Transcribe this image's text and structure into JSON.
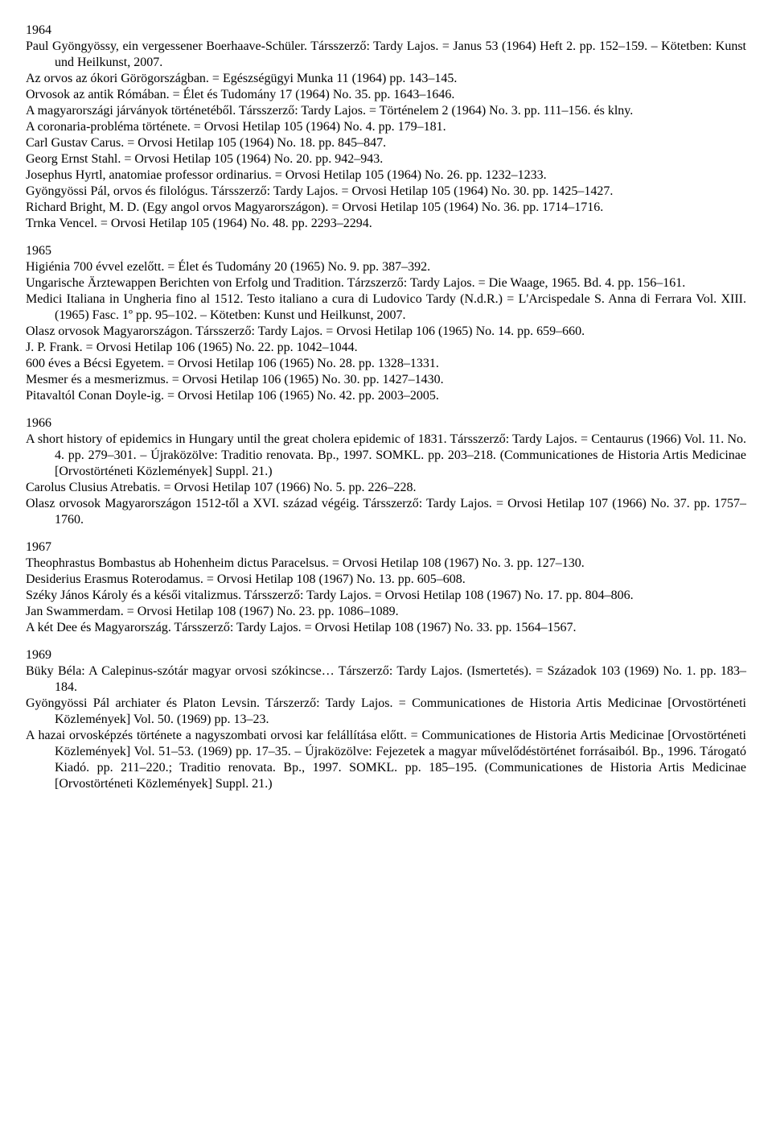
{
  "sections": [
    {
      "year": "1964",
      "entries": [
        "Paul Gyöngyössy, ein vergessener Boerhaave-Schüler. Társszerző: Tardy Lajos. = Janus 53 (1964) Heft 2. pp. 152–159. – Kötetben: Kunst und Heilkunst, 2007.",
        "Az orvos az ókori Görögországban. = Egészségügyi Munka 11 (1964) pp. 143–145.",
        "Orvosok az antik Rómában. = Élet és Tudomány 17 (1964) No. 35. pp. 1643–1646.",
        "A magyarországi járványok történetéből. Társszerző: Tardy Lajos. = Történelem 2 (1964) No. 3. pp. 111–156. és klny.",
        "A coronaria-probléma története. = Orvosi Hetilap 105 (1964) No. 4. pp. 179–181.",
        "Carl Gustav Carus. = Orvosi Hetilap 105 (1964) No. 18. pp. 845–847.",
        "Georg Ernst Stahl. = Orvosi Hetilap 105 (1964) No. 20. pp. 942–943.",
        "Josephus Hyrtl, anatomiae professor ordinarius. = Orvosi Hetilap 105 (1964) No. 26. pp. 1232–1233.",
        "Gyöngyössi Pál, orvos és filológus. Társszerző: Tardy Lajos. = Orvosi Hetilap 105 (1964) No. 30. pp. 1425–1427.",
        "Richard Bright, M. D. (Egy angol orvos Magyarországon). = Orvosi Hetilap 105 (1964) No. 36. pp. 1714–1716.",
        "Trnka Vencel. = Orvosi Hetilap 105 (1964) No. 48. pp. 2293–2294."
      ]
    },
    {
      "year": "1965",
      "entries": [
        "Higiénia 700 évvel ezelőtt. = Élet és Tudomány 20 (1965) No. 9. pp. 387–392.",
        "Ungarische Ärztewappen Berichten von Erfolg und Tradition. Tárzszerző: Tardy Lajos. = Die Waage, 1965. Bd. 4. pp. 156–161.",
        "Medici Italiana in Ungheria fino al 1512. Testo italiano a cura di Ludovico Tardy (N.d.R.) = L'Arcispedale S. Anna di Ferrara Vol. XIII. (1965) Fasc. 1º pp. 95–102. – Kötetben: Kunst und Heilkunst, 2007.",
        "Olasz orvosok Magyarországon. Társszerző: Tardy Lajos. = Orvosi Hetilap 106 (1965) No. 14. pp. 659–660.",
        "J. P. Frank. = Orvosi Hetilap 106 (1965) No. 22. pp. 1042–1044.",
        "600 éves a Bécsi Egyetem. = Orvosi Hetilap 106 (1965) No. 28. pp. 1328–1331.",
        "Mesmer és a mesmerizmus. = Orvosi Hetilap 106 (1965) No. 30. pp. 1427–1430.",
        "Pitavaltól Conan Doyle-ig. = Orvosi Hetilap 106 (1965) No. 42. pp. 2003–2005."
      ]
    },
    {
      "year": "1966",
      "entries": [
        "A short history of epidemics in Hungary until the great cholera epidemic of 1831. Társszerző: Tardy Lajos. = Centaurus (1966) Vol. 11. No. 4. pp. 279–301. – Újraközölve: Traditio renovata. Bp., 1997. SOMKL. pp. 203–218. (Communicationes de Historia Artis Medicinae [Orvostörténeti Közlemények] Suppl. 21.)",
        "Carolus Clusius Atrebatis. = Orvosi Hetilap 107 (1966) No. 5. pp. 226–228.",
        "Olasz orvosok Magyarországon 1512-től a XVI. század végéig. Társszerző: Tardy Lajos. = Orvosi Hetilap 107 (1966) No. 37. pp. 1757–1760."
      ]
    },
    {
      "year": "1967",
      "entries": [
        "Theophrastus Bombastus ab Hohenheim dictus Paracelsus. = Orvosi Hetilap 108 (1967) No. 3. pp. 127–130.",
        "Desiderius Erasmus Roterodamus. = Orvosi Hetilap 108 (1967) No. 13. pp. 605–608.",
        "Széky János Károly és a késői vitalizmus. Társszerző: Tardy Lajos. = Orvosi Hetilap 108 (1967) No. 17. pp. 804–806.",
        "Jan Swammerdam. = Orvosi Hetilap 108 (1967) No. 23. pp. 1086–1089.",
        "A két Dee és Magyarország. Társszerző: Tardy Lajos. = Orvosi Hetilap 108 (1967) No. 33. pp. 1564–1567."
      ]
    },
    {
      "year": "1969",
      "entries": [
        "Büky Béla: A Calepinus-szótár magyar orvosi szókincse… Társzerző: Tardy Lajos. (Ismertetés). = Századok 103 (1969) No. 1. pp. 183–184.",
        "Gyöngyössi Pál archiater és Platon Levsin. Társzerző: Tardy Lajos. = Communicationes de Historia Artis Medicinae [Orvostörténeti Közlemények] Vol. 50. (1969) pp. 13–23.",
        "A hazai orvosképzés története a nagyszombati orvosi kar felállítása előtt. = Communicationes de Historia Artis Medicinae [Orvostörténeti Közlemények] Vol. 51–53. (1969) pp. 17–35. – Újraközölve: Fejezetek a magyar művelődéstörténet forrásaiból. Bp., 1996. Tárogató Kiadó. pp. 211–220.; Traditio renovata. Bp., 1997. SOMKL. pp. 185–195. (Communicationes de Historia Artis Medicinae [Orvostörténeti Közlemények] Suppl. 21.)"
      ]
    }
  ]
}
